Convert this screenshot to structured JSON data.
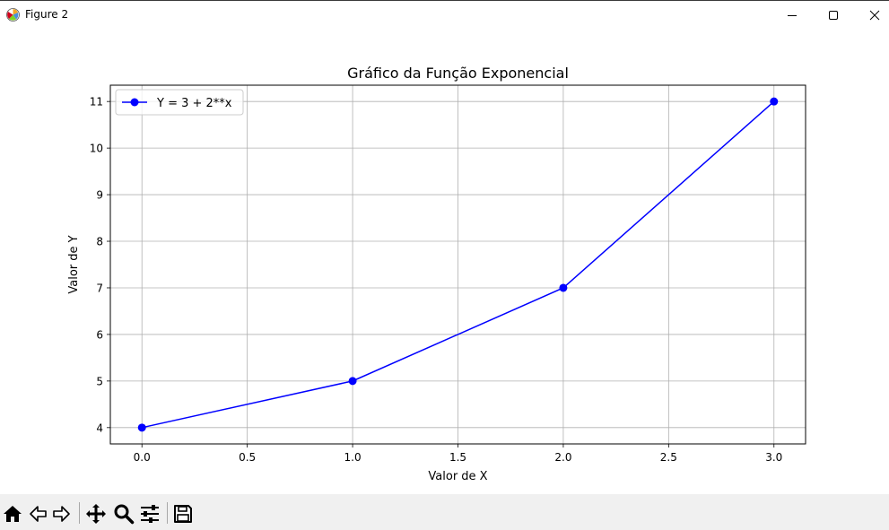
{
  "window": {
    "title": "Figure 2",
    "controls": [
      "minimize",
      "maximize",
      "close"
    ]
  },
  "toolbar": {
    "buttons": [
      {
        "icon": "home-icon",
        "label": "Home"
      },
      {
        "icon": "back-icon",
        "label": "Back"
      },
      {
        "icon": "forward-icon",
        "label": "Forward"
      },
      {
        "icon": "pan-icon",
        "label": "Pan"
      },
      {
        "icon": "zoom-icon",
        "label": "Zoom"
      },
      {
        "icon": "configure-subplots-icon",
        "label": "Configure subplots"
      },
      {
        "icon": "save-icon",
        "label": "Save"
      }
    ]
  },
  "chart_data": {
    "type": "line",
    "title": "Gráfico da Função Exponencial",
    "xlabel": "Valor de X",
    "ylabel": "Valor de Y",
    "xlim": [
      -0.15,
      3.15
    ],
    "ylim": [
      3.65,
      11.35
    ],
    "xticks": [
      0.0,
      0.5,
      1.0,
      1.5,
      2.0,
      2.5,
      3.0
    ],
    "xtick_labels": [
      "0.0",
      "0.5",
      "1.0",
      "1.5",
      "2.0",
      "2.5",
      "3.0"
    ],
    "yticks": [
      4,
      5,
      6,
      7,
      8,
      9,
      10,
      11
    ],
    "ytick_labels": [
      "4",
      "5",
      "6",
      "7",
      "8",
      "9",
      "10",
      "11"
    ],
    "grid": true,
    "legend_position": "upper-left",
    "series": [
      {
        "name": "Y = 3 + 2**x",
        "color": "#0000ff",
        "marker": "circle",
        "x": [
          0,
          1,
          2,
          3
        ],
        "y": [
          4,
          5,
          7,
          11
        ]
      }
    ]
  }
}
